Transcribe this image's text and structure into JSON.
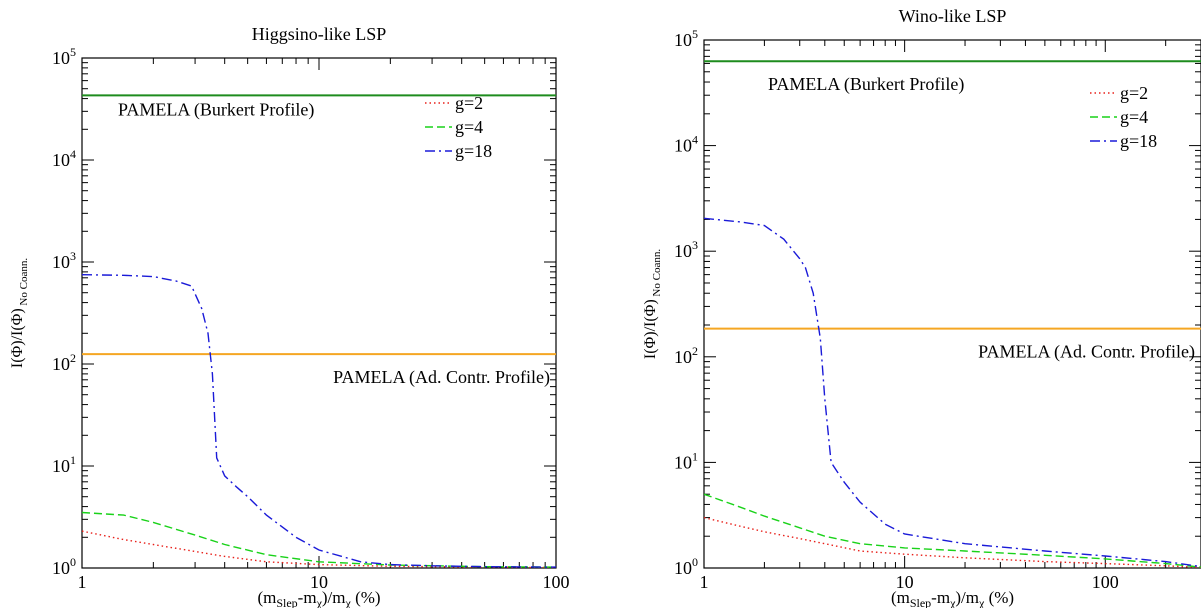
{
  "chart_data": [
    {
      "type": "line",
      "title": "Higgsino-like LSP",
      "xlabel": {
        "base": "(m",
        "sub1": "Slep",
        "mid": "-m",
        "sub2": "χ",
        "tail": ")/m",
        "sub3": "χ",
        "end": " (%)"
      },
      "ylabel": {
        "main": "I(Φ)/I(Φ)",
        "sub": " No Coann."
      },
      "xscale": "log",
      "yscale": "log",
      "xlim": [
        1,
        100
      ],
      "ylim": [
        1,
        100000
      ],
      "x_ticks": [
        {
          "value": 1,
          "label": "1"
        },
        {
          "value": 10,
          "label": "10"
        },
        {
          "value": 100,
          "label": "100"
        }
      ],
      "y_ticks": [
        {
          "value": 1,
          "base": "10",
          "exp": "0"
        },
        {
          "value": 10,
          "base": "10",
          "exp": "1"
        },
        {
          "value": 100,
          "base": "10",
          "exp": "2"
        },
        {
          "value": 1000,
          "base": "10",
          "exp": "3"
        },
        {
          "value": 10000,
          "base": "10",
          "exp": "4"
        },
        {
          "value": 100000,
          "base": "10",
          "exp": "5"
        }
      ],
      "hlines": [
        {
          "label": "PAMELA (Burkert Profile)",
          "value": 43000,
          "color": "#1e8c1e",
          "label_pos": "below-left"
        },
        {
          "label": "PAMELA (Ad. Contr. Profile)",
          "value": 125,
          "color": "#f5a623",
          "label_pos": "below-right"
        }
      ],
      "legend_position": "top-right",
      "series": [
        {
          "name": "g=2",
          "color": "#e8201a",
          "dash": "dotted",
          "x": [
            1,
            1.5,
            2,
            3,
            4,
            6,
            10,
            20,
            50,
            100
          ],
          "y": [
            2.3,
            1.9,
            1.7,
            1.45,
            1.3,
            1.15,
            1.08,
            1.04,
            1.02,
            1.01
          ]
        },
        {
          "name": "g=4",
          "color": "#19d219",
          "dash": "dashed",
          "x": [
            1,
            1.5,
            2,
            3,
            4,
            6,
            10,
            20,
            50,
            100
          ],
          "y": [
            3.5,
            3.3,
            2.8,
            2.1,
            1.7,
            1.35,
            1.15,
            1.07,
            1.03,
            1.02
          ]
        },
        {
          "name": "g=18",
          "color": "#1a1ad8",
          "dash": "dashdot",
          "x": [
            1,
            1.5,
            2,
            2.5,
            2.9,
            3.2,
            3.4,
            3.55,
            3.7,
            4,
            4.5,
            5,
            6,
            8,
            10,
            15,
            20,
            30,
            50,
            100
          ],
          "y": [
            750,
            740,
            720,
            650,
            580,
            350,
            200,
            80,
            12,
            8,
            6.2,
            5,
            3.3,
            2,
            1.5,
            1.15,
            1.08,
            1.05,
            1.03,
            1.02
          ]
        }
      ]
    },
    {
      "type": "line",
      "title": "Wino-like LSP",
      "xlabel": {
        "base": "(m",
        "sub1": "Slep",
        "mid": "-m",
        "sub2": "χ",
        "tail": ")/m",
        "sub3": "χ",
        "end": " (%)"
      },
      "ylabel": {
        "main": "I(Φ)/I(Φ)",
        "sub": " No Coann."
      },
      "xscale": "log",
      "yscale": "log",
      "xlim": [
        1,
        300
      ],
      "ylim": [
        1,
        100000
      ],
      "x_ticks": [
        {
          "value": 1,
          "label": "1"
        },
        {
          "value": 10,
          "label": "10"
        },
        {
          "value": 100,
          "label": "100"
        }
      ],
      "y_ticks": [
        {
          "value": 1,
          "base": "10",
          "exp": "0"
        },
        {
          "value": 10,
          "base": "10",
          "exp": "1"
        },
        {
          "value": 100,
          "base": "10",
          "exp": "2"
        },
        {
          "value": 1000,
          "base": "10",
          "exp": "3"
        },
        {
          "value": 10000,
          "base": "10",
          "exp": "4"
        },
        {
          "value": 100000,
          "base": "10",
          "exp": "5"
        }
      ],
      "hlines": [
        {
          "label": "PAMELA (Burkert Profile)",
          "value": 63000,
          "color": "#1e8c1e",
          "label_pos": "below-left"
        },
        {
          "label": "PAMELA (Ad. Contr. Profile)",
          "value": 185,
          "color": "#f5a623",
          "label_pos": "below-right"
        }
      ],
      "legend_position": "top-right",
      "series": [
        {
          "name": "g=2",
          "color": "#e8201a",
          "dash": "dotted",
          "x": [
            1,
            1.5,
            2,
            3,
            4,
            6,
            10,
            20,
            50,
            100,
            200,
            300
          ],
          "y": [
            3.0,
            2.5,
            2.2,
            1.9,
            1.7,
            1.45,
            1.35,
            1.25,
            1.15,
            1.1,
            1.05,
            1.01
          ]
        },
        {
          "name": "g=4",
          "color": "#19d219",
          "dash": "dashed",
          "x": [
            1,
            1.5,
            2,
            3,
            4,
            6,
            10,
            20,
            50,
            100,
            200,
            300
          ],
          "y": [
            5.0,
            3.8,
            3.1,
            2.4,
            2.0,
            1.7,
            1.55,
            1.45,
            1.32,
            1.22,
            1.1,
            1.02
          ]
        },
        {
          "name": "g=18",
          "color": "#1a1ad8",
          "dash": "dashdot",
          "x": [
            1,
            1.5,
            2,
            2.5,
            3,
            3.2,
            3.5,
            3.8,
            4,
            4.3,
            5,
            6,
            8,
            10,
            20,
            50,
            100,
            200,
            300
          ],
          "y": [
            2050,
            1900,
            1750,
            1300,
            850,
            700,
            400,
            150,
            40,
            10,
            6.5,
            4.2,
            2.6,
            2.1,
            1.7,
            1.45,
            1.3,
            1.15,
            1.03
          ]
        }
      ]
    }
  ]
}
